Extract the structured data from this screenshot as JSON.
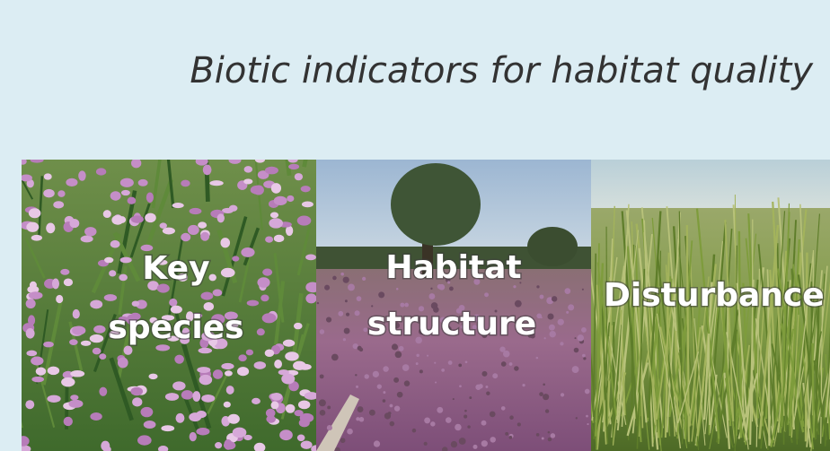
{
  "title": "Biotic indicators for habitat quality",
  "panels": [
    {
      "lines": [
        "Key",
        "species"
      ]
    },
    {
      "lines": [
        "Habitat",
        "structure"
      ]
    },
    {
      "lines": [
        "Disturbance"
      ]
    }
  ]
}
